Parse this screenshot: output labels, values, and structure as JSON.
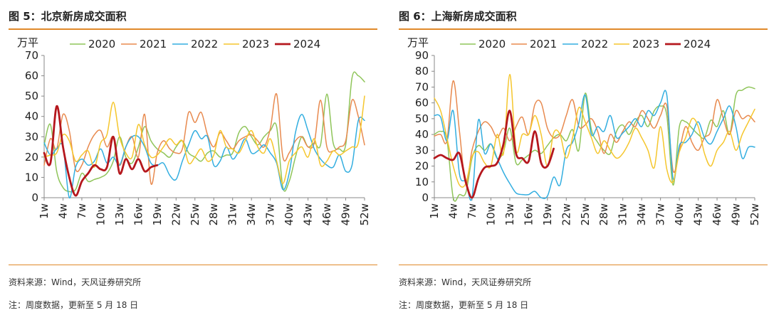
{
  "charts": [
    {
      "fig_title": "图 5：北京新房成交面积",
      "source": "资料来源：Wind，天风证券研究所",
      "note": "注：周度数据，更新至 5 月 18 日",
      "chart_data": {
        "type": "line",
        "title": "图 5：北京新房成交面积",
        "ylabel": "万平",
        "xlabel": "",
        "ylim": [
          0,
          70
        ],
        "yticks": [
          0,
          10,
          20,
          30,
          40,
          50,
          60,
          70
        ],
        "xlim": [
          1,
          52
        ],
        "xticks": [
          "1w",
          "4w",
          "7w",
          "10w",
          "13w",
          "16w",
          "19w",
          "22w",
          "25w",
          "28w",
          "31w",
          "34w",
          "37w",
          "40w",
          "43w",
          "46w",
          "49w",
          "52w"
        ],
        "legend_placement": "top",
        "grid": false,
        "series": [
          {
            "name": "2020",
            "color": "#8fc55a",
            "width": 1.5,
            "values": [
              26,
              36,
              13,
              5,
              3,
              4,
              12,
              8,
              9,
              10,
              12,
              18,
              30,
              20,
              17,
              25,
              35,
              28,
              24,
              22,
              20,
              25,
              28,
              22,
              20,
              18,
              22,
              23,
              20,
              21,
              22,
              32,
              35,
              30,
              26,
              30,
              33,
              35,
              5,
              8,
              20,
              30,
              25,
              27,
              26,
              51,
              27,
              24,
              26,
              59,
              60,
              57
            ]
          },
          {
            "name": "2021",
            "color": "#e88a4f",
            "width": 1.5,
            "values": [
              16,
              29,
              24,
              41,
              33,
              14,
              16,
              25,
              31,
              33,
              25,
              30,
              16,
              25,
              30,
              20,
              41,
              7,
              22,
              28,
              24,
              22,
              24,
              42,
              37,
              42,
              31,
              25,
              32,
              28,
              24,
              28,
              30,
              31,
              28,
              25,
              34,
              51,
              20,
              22,
              28,
              30,
              25,
              27,
              48,
              25,
              23,
              25,
              28,
              48,
              40,
              26
            ]
          },
          {
            "name": "2022",
            "color": "#33aee0",
            "width": 1.5,
            "values": [
              27,
              21,
              24,
              25,
              0,
              15,
              19,
              16,
              18,
              24,
              17,
              20,
              16,
              25,
              30,
              30,
              25,
              17,
              16,
              17,
              11,
              9,
              18,
              26,
              33,
              29,
              30,
              16,
              18,
              25,
              19,
              23,
              29,
              22,
              23,
              26,
              22,
              17,
              4,
              12,
              32,
              41,
              33,
              24,
              19,
              16,
              15,
              21,
              13,
              16,
              38,
              38
            ]
          },
          {
            "name": "2023",
            "color": "#f5c62d",
            "width": 1.5,
            "values": [
              20,
              21,
              22,
              31,
              28,
              18,
              21,
              23,
              15,
              27,
              31,
              47,
              30,
              22,
              20,
              36,
              26,
              20,
              21,
              25,
              29,
              26,
              28,
              17,
              20,
              24,
              18,
              21,
              33,
              25,
              24,
              22,
              28,
              33,
              25,
              22,
              29,
              18,
              7,
              18,
              22,
              25,
              20,
              29,
              16,
              18,
              23,
              21,
              23,
              25,
              27,
              50
            ]
          },
          {
            "name": "2024",
            "color": "#b5171d",
            "width": 2.8,
            "values": [
              22,
              17,
              45,
              25,
              10,
              1,
              8,
              12,
              16,
              14,
              15,
              30,
              12,
              19,
              14,
              19,
              13,
              15,
              16
            ]
          }
        ]
      }
    },
    {
      "fig_title": "图 6：上海新房成交面积",
      "source": "资料来源：Wind，天风证券研究所",
      "note": "注：周度数据，更新至 5 月 18 日",
      "chart_data": {
        "type": "line",
        "title": "图 6：上海新房成交面积",
        "ylabel": "万平",
        "xlabel": "",
        "ylim": [
          0,
          90
        ],
        "yticks": [
          0,
          10,
          20,
          30,
          40,
          50,
          60,
          70,
          80,
          90
        ],
        "xlim": [
          1,
          52
        ],
        "xticks": [
          "1w",
          "4w",
          "7w",
          "10w",
          "13w",
          "16w",
          "19w",
          "22w",
          "25w",
          "28w",
          "31w",
          "34w",
          "37w",
          "40w",
          "43w",
          "46w",
          "49w",
          "52w"
        ],
        "legend_placement": "top",
        "grid": false,
        "series": [
          {
            "name": "2020",
            "color": "#8fc55a",
            "width": 1.5,
            "values": [
              40,
              42,
              37,
              0,
              2,
              3,
              25,
              33,
              30,
              34,
              25,
              29,
              44,
              22,
              24,
              27,
              30,
              28,
              33,
              38,
              40,
              36,
              43,
              30,
              66,
              43,
              35,
              30,
              28,
              42,
              46,
              40,
              48,
              52,
              45,
              55,
              58,
              52,
              8,
              45,
              48,
              44,
              40,
              38,
              49,
              45,
              55,
              40,
              65,
              68,
              70,
              69
            ]
          },
          {
            "name": "2021",
            "color": "#e88a4f",
            "width": 1.5,
            "values": [
              39,
              40,
              36,
              74,
              42,
              9,
              30,
              42,
              48,
              45,
              38,
              44,
              36,
              45,
              51,
              40,
              59,
              60,
              44,
              38,
              40,
              52,
              62,
              45,
              46,
              50,
              42,
              28,
              40,
              35,
              42,
              48,
              45,
              55,
              50,
              44,
              52,
              58,
              17,
              30,
              45,
              35,
              30,
              38,
              42,
              62,
              50,
              40,
              55,
              50,
              52,
              48
            ]
          },
          {
            "name": "2022",
            "color": "#33aee0",
            "width": 1.5,
            "values": [
              52,
              51,
              36,
              55,
              15,
              10,
              0,
              49,
              28,
              34,
              25,
              16,
              9,
              3,
              2,
              2,
              4,
              0,
              1,
              13,
              8,
              30,
              35,
              47,
              65,
              40,
              45,
              42,
              52,
              38,
              41,
              45,
              50,
              45,
              55,
              52,
              60,
              65,
              12,
              33,
              35,
              40,
              48,
              38,
              34,
              42,
              50,
              58,
              45,
              25,
              32,
              32
            ]
          },
          {
            "name": "2023",
            "color": "#f5c62d",
            "width": 1.5,
            "values": [
              63,
              55,
              38,
              20,
              8,
              9,
              26,
              29,
              22,
              20,
              40,
              28,
              78,
              30,
              40,
              40,
              52,
              40,
              20,
              41,
              40,
              25,
              38,
              57,
              48,
              38,
              28,
              36,
              30,
              25,
              28,
              35,
              44,
              38,
              30,
              19,
              45,
              18,
              10,
              29,
              38,
              50,
              45,
              28,
              20,
              30,
              35,
              42,
              30,
              40,
              48,
              56
            ]
          },
          {
            "name": "2024",
            "color": "#b5171d",
            "width": 2.8,
            "values": [
              25,
              27,
              25,
              24,
              28,
              10,
              0,
              12,
              19,
              20,
              22,
              34,
              55,
              28,
              25,
              23,
              42,
              22,
              20,
              31
            ]
          }
        ]
      }
    }
  ]
}
